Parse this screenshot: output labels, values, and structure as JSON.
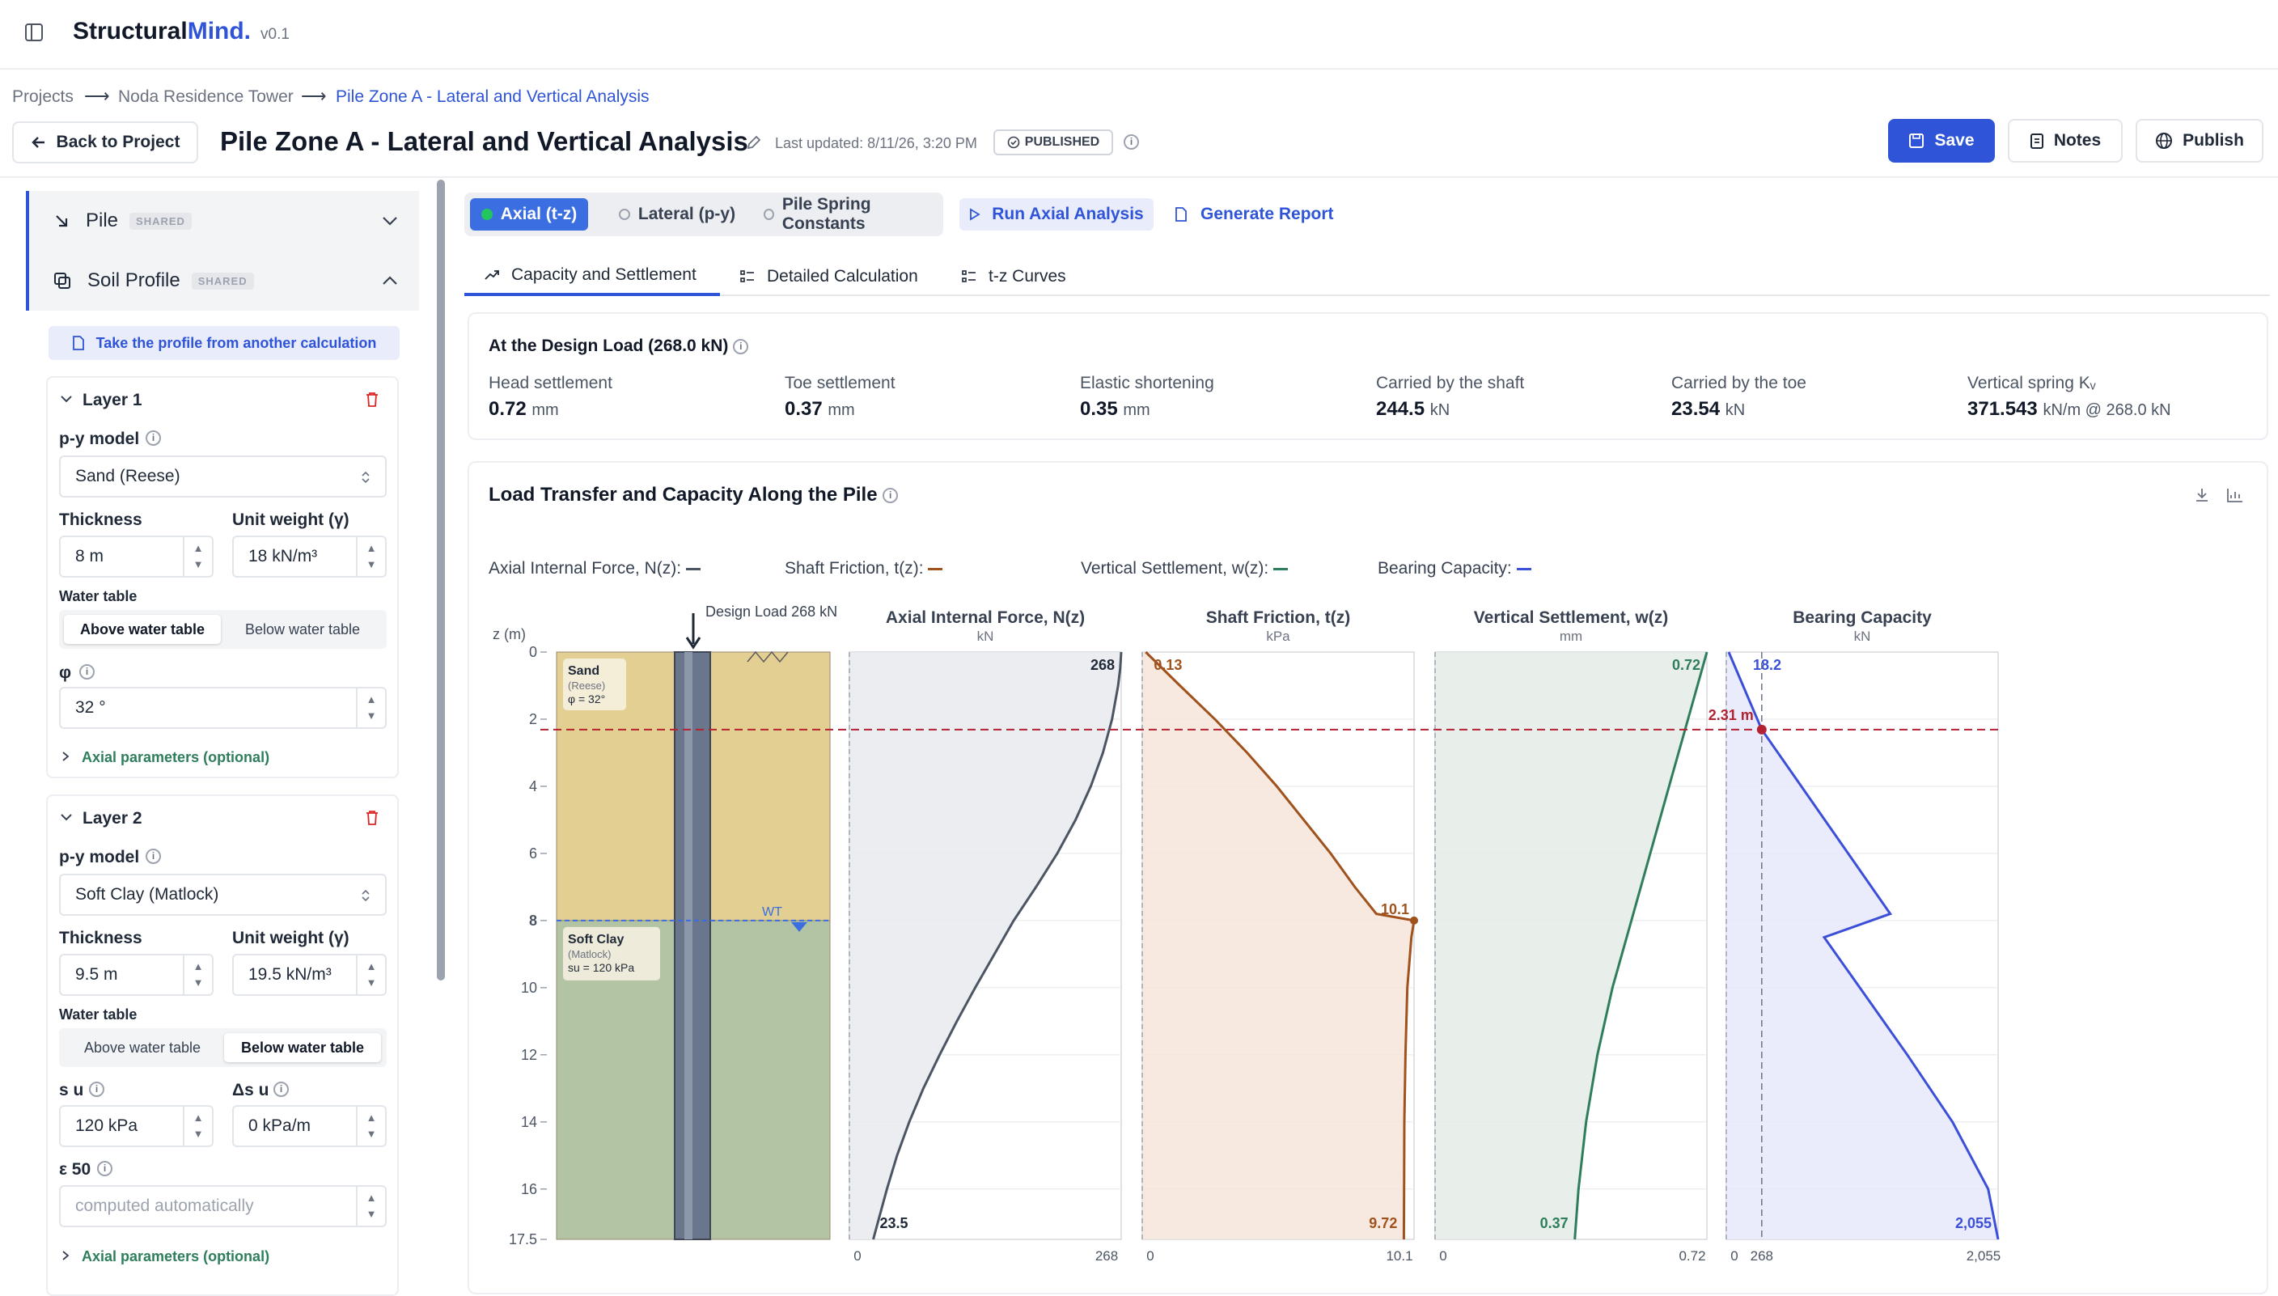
{
  "app": {
    "brand_a": "Structural",
    "brand_b": "Mind.",
    "version": "v0.1"
  },
  "breadcrumb": {
    "items": [
      "Projects",
      "Noda Residence Tower",
      "Pile Zone A - Lateral and Vertical Analysis"
    ],
    "sep": "⟶"
  },
  "header": {
    "back_label": "Back to Project",
    "title": "Pile Zone A - Lateral and Vertical Analysis",
    "updated": "Last updated: 8/11/26, 3:20 PM",
    "status": "PUBLISHED",
    "save_label": "Save",
    "notes_label": "Notes",
    "publish_label": "Publish"
  },
  "sidebar": {
    "pile_label": "Pile",
    "pile_tag": "SHARED",
    "soil_label": "Soil Profile",
    "soil_tag": "SHARED",
    "take_profile": "Take the profile from another calculation",
    "layers": [
      {
        "title": "Layer 1",
        "py_label": "p-y model",
        "py_value": "Sand (Reese)",
        "thickness_label": "Thickness",
        "thickness": "8 m",
        "unitw_label": "Unit weight (γ)",
        "unitw": "18 kN/m³",
        "water_label": "Water table",
        "water_options": [
          "Above water table",
          "Below water table"
        ],
        "water_selected": 0,
        "param_label": "φ",
        "param_value": "32 °",
        "axial_label": "Axial parameters (optional)"
      },
      {
        "title": "Layer 2",
        "py_label": "p-y model",
        "py_value": "Soft Clay (Matlock)",
        "thickness_label": "Thickness",
        "thickness": "9.5 m",
        "unitw_label": "Unit weight (γ)",
        "unitw": "19.5 kN/m³",
        "water_label": "Water table",
        "water_options": [
          "Above water table",
          "Below water table"
        ],
        "water_selected": 1,
        "su_label": "s u",
        "su_value": "120 kPa",
        "dsu_label": "Δs u",
        "dsu_value": "0 kPa/m",
        "eps_label": "ε 50",
        "eps_placeholder": "computed automatically",
        "axial_label": "Axial parameters (optional)"
      }
    ]
  },
  "main": {
    "mode_tabs": [
      "Axial (t-z)",
      "Lateral (p-y)",
      "Pile Spring Constants"
    ],
    "run_label": "Run Axial Analysis",
    "report_label": "Generate Report",
    "sub_tabs": [
      "Capacity and Settlement",
      "Detailed Calculation",
      "t-z Curves"
    ],
    "summary": {
      "title": "At the Design Load (268.0 kN)",
      "items": [
        {
          "label": "Head settlement",
          "value": "0.72",
          "unit": "mm"
        },
        {
          "label": "Toe settlement",
          "value": "0.37",
          "unit": "mm"
        },
        {
          "label": "Elastic shortening",
          "value": "0.35",
          "unit": "mm"
        },
        {
          "label": "Carried by the shaft",
          "value": "244.5",
          "unit": "kN"
        },
        {
          "label": "Carried by the toe",
          "value": "23.54",
          "unit": "kN"
        },
        {
          "label": "Vertical spring Kᵥ",
          "value": "371.543",
          "unit": "kN/m @ 268.0 kN"
        }
      ]
    },
    "chart_title": "Load Transfer and Capacity Along the Pile"
  },
  "colors": {
    "accent": "#2f54d8",
    "axial": "#4b5563",
    "friction": "#a0521d",
    "settlement": "#2e7d5b",
    "bearing": "#3b4fd8",
    "marker": "#b42332",
    "sand": "#e4cf92",
    "clay": "#b2c4a3"
  },
  "chart_data": {
    "type": "line",
    "depth_label": "z (m)",
    "depth_ticks": [
      "0",
      "2",
      "4",
      "6",
      "8",
      "10",
      "12",
      "14",
      "16",
      "17.5"
    ],
    "depth_range": [
      0,
      17.5
    ],
    "design_load_label": "Design Load 268 kN",
    "marker_depth": 2.31,
    "marker_label": "2.31 m",
    "water_table_label": "WT",
    "water_table_depth": 8,
    "legend": [
      {
        "name": "Axial Internal Force, N(z):",
        "color": "#4b5563"
      },
      {
        "name": "Shaft Friction, t(z):",
        "color": "#a0521d"
      },
      {
        "name": "Vertical Settlement, w(z):",
        "color": "#2e7d5b"
      },
      {
        "name": "Bearing Capacity:",
        "color": "#3b4fd8"
      }
    ],
    "soil_layers": [
      {
        "name": "Sand",
        "model": "(Reese)",
        "param": "φ = 32°",
        "top": 0,
        "bottom": 8
      },
      {
        "name": "Soft Clay",
        "model": "(Matlock)",
        "param": "su = 120 kPa",
        "top": 8,
        "bottom": 17.5
      }
    ],
    "panels": [
      {
        "title": "Axial Internal Force, N(z)",
        "unit": "kN",
        "xlim": [
          0,
          268
        ],
        "xticks": [
          "0",
          "268"
        ],
        "top_label": "268",
        "bottom_label": "23.5",
        "z": [
          0,
          0.5,
          1,
          2,
          3,
          4,
          5,
          6,
          7,
          8,
          9,
          10,
          11,
          12,
          13,
          14,
          15,
          16,
          17,
          17.5
        ],
        "x": [
          268,
          267,
          265,
          259,
          250,
          238,
          223,
          205,
          184,
          162,
          143,
          124,
          106,
          89,
          73,
          59,
          47,
          37,
          28,
          23.5
        ]
      },
      {
        "title": "Shaft Friction, t(z)",
        "unit": "kPa",
        "xlim": [
          0,
          10.1
        ],
        "xticks": [
          "0",
          "10.1"
        ],
        "top_label": "0.13",
        "peak_label": "10.1",
        "bottom_label": "9.72",
        "z": [
          0,
          1,
          2,
          3,
          4,
          5,
          6,
          7,
          7.8,
          8,
          8.5,
          10,
          12,
          14,
          16,
          17.5
        ],
        "x": [
          0.13,
          1.4,
          2.7,
          3.9,
          5.0,
          6.0,
          7.0,
          7.9,
          8.7,
          10.1,
          10.0,
          9.85,
          9.78,
          9.74,
          9.73,
          9.72
        ]
      },
      {
        "title": "Vertical Settlement, w(z)",
        "unit": "mm",
        "xlim": [
          0,
          0.72
        ],
        "xticks": [
          "0",
          "0.72"
        ],
        "top_label": "0.72",
        "bottom_label": "0.37",
        "z": [
          0,
          2,
          4,
          6,
          8,
          10,
          12,
          14,
          16,
          17.5
        ],
        "x": [
          0.72,
          0.67,
          0.62,
          0.57,
          0.52,
          0.47,
          0.43,
          0.4,
          0.38,
          0.37
        ]
      },
      {
        "title": "Bearing Capacity",
        "unit": "kN",
        "xlim": [
          0,
          2055
        ],
        "xticks": [
          "0",
          "268",
          "2,055"
        ],
        "top_label": "18.2",
        "bottom_label": "2,055",
        "ref_value": 268,
        "z": [
          0,
          2.31,
          4,
          6,
          7.8,
          8.5,
          10,
          12,
          14,
          16,
          17.5
        ],
        "x": [
          18.2,
          268,
          567,
          921,
          1240,
          740,
          1010,
          1368,
          1710,
          1980,
          2055
        ]
      }
    ]
  }
}
